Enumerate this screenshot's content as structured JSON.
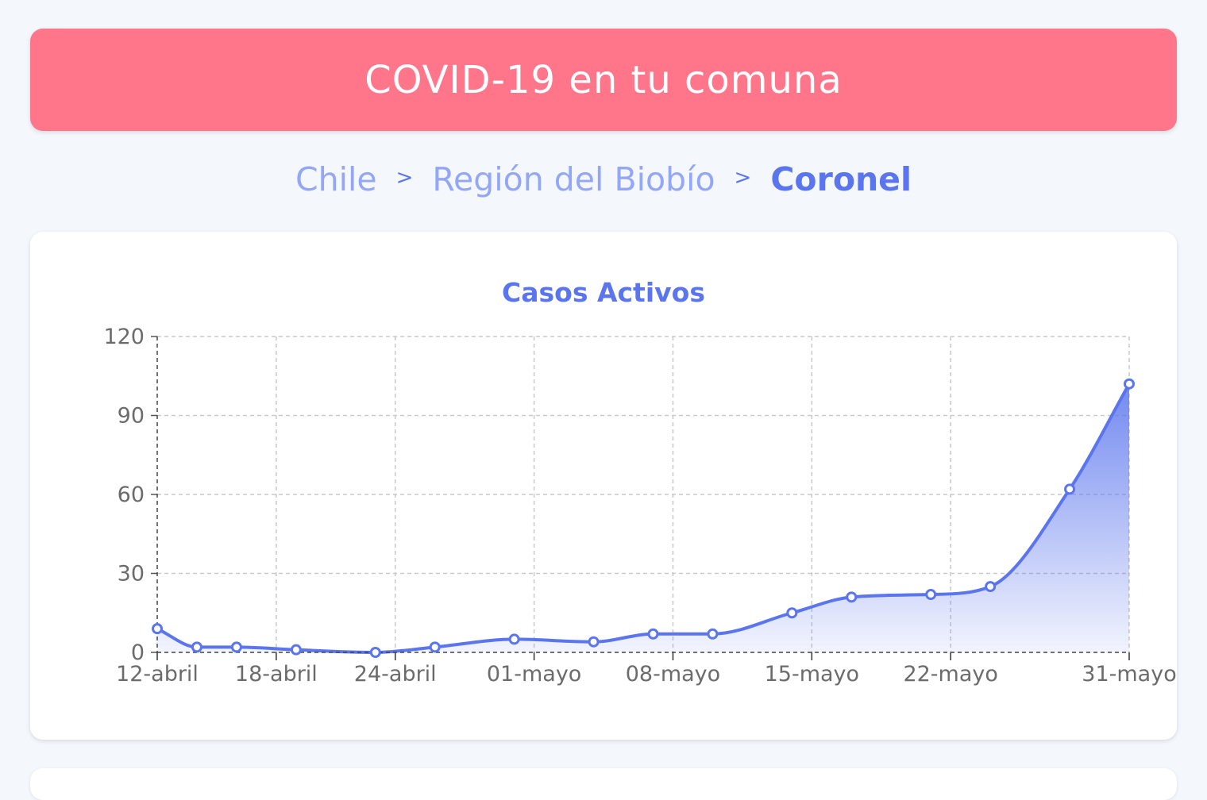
{
  "header": {
    "title": "COVID-19 en tu comuna"
  },
  "breadcrumb": {
    "items": [
      "Chile",
      "Región del Biobío",
      "Coronel"
    ],
    "separator": ">"
  },
  "colors": {
    "header_bg": "#ff768b",
    "accent": "#5a75ed",
    "breadcrumb_link": "#93a7f6",
    "page_bg": "#f4f8fd"
  },
  "chart_data": {
    "type": "area",
    "title": "Casos Activos",
    "xlabel": "",
    "ylabel": "",
    "ylim": [
      0,
      120
    ],
    "yticks": [
      0,
      30,
      60,
      90,
      120
    ],
    "xlim": [
      "2020-04-12",
      "2020-05-31"
    ],
    "xticks": [
      {
        "date": "2020-04-12",
        "label": "12-abril"
      },
      {
        "date": "2020-04-18",
        "label": "18-abril"
      },
      {
        "date": "2020-04-24",
        "label": "24-abril"
      },
      {
        "date": "2020-05-01",
        "label": "01-mayo"
      },
      {
        "date": "2020-05-08",
        "label": "08-mayo"
      },
      {
        "date": "2020-05-15",
        "label": "15-mayo"
      },
      {
        "date": "2020-05-22",
        "label": "22-mayo"
      },
      {
        "date": "2020-05-31",
        "label": "31-mayo"
      }
    ],
    "grid": true,
    "series": [
      {
        "x": [
          "2020-04-12",
          "2020-04-14",
          "2020-04-16",
          "2020-04-19",
          "2020-04-23",
          "2020-04-26",
          "2020-04-30",
          "2020-05-04",
          "2020-05-07",
          "2020-05-10",
          "2020-05-14",
          "2020-05-17",
          "2020-05-21",
          "2020-05-24",
          "2020-05-28",
          "2020-05-31"
        ],
        "values": [
          9,
          2,
          2,
          1,
          0,
          2,
          5,
          4,
          7,
          7,
          15,
          21,
          22,
          25,
          62,
          102
        ]
      }
    ]
  }
}
